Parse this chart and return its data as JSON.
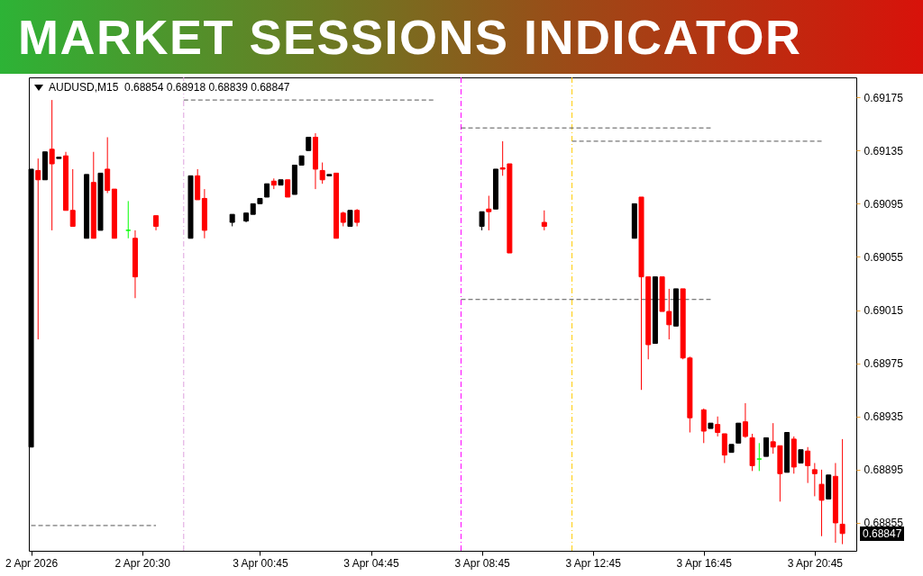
{
  "chart_data": {
    "type": "candlestick",
    "title": "MARKET SESSIONS INDICATOR",
    "subtitle": "AUDUSD,M15  0.68854 0.68918 0.68839 0.68847",
    "x": [
      "2026-04-02T16:30",
      "2026-04-02T16:45",
      "2026-04-02T17:00",
      "2026-04-02T17:15",
      "2026-04-02T17:30",
      "2026-04-02T17:45",
      "2026-04-02T18:00",
      "2026-04-02T18:30",
      "2026-04-02T18:45",
      "2026-04-02T19:00",
      "2026-04-02T19:15",
      "2026-04-02T19:30",
      "2026-04-02T20:00",
      "2026-04-02T20:15",
      "2026-04-02T21:00",
      "2026-04-02T22:15",
      "2026-04-02T22:30",
      "2026-04-02T22:45",
      "2026-04-02T23:45",
      "2026-04-03T00:15",
      "2026-04-03T00:30",
      "2026-04-03T00:45",
      "2026-04-03T01:00",
      "2026-04-03T01:15",
      "2026-04-03T01:30",
      "2026-04-03T01:45",
      "2026-04-03T02:00",
      "2026-04-03T02:15",
      "2026-04-03T02:30",
      "2026-04-03T02:45",
      "2026-04-03T03:00",
      "2026-04-03T03:15",
      "2026-04-03T03:30",
      "2026-04-03T03:45",
      "2026-04-03T04:00",
      "2026-04-03T04:15",
      "2026-04-03T08:45",
      "2026-04-03T09:00",
      "2026-04-03T09:15",
      "2026-04-03T09:30",
      "2026-04-03T09:45",
      "2026-04-03T11:00",
      "2026-04-03T14:15",
      "2026-04-03T14:30",
      "2026-04-03T14:45",
      "2026-04-03T15:00",
      "2026-04-03T15:15",
      "2026-04-03T15:30",
      "2026-04-03T15:45",
      "2026-04-03T16:00",
      "2026-04-03T16:15",
      "2026-04-03T16:45",
      "2026-04-03T17:00",
      "2026-04-03T17:15",
      "2026-04-03T17:30",
      "2026-04-03T17:45",
      "2026-04-03T18:00",
      "2026-04-03T18:15",
      "2026-04-03T18:30",
      "2026-04-03T18:45",
      "2026-04-03T19:00",
      "2026-04-03T19:15",
      "2026-04-03T19:30",
      "2026-04-03T19:45",
      "2026-04-03T20:00",
      "2026-04-03T20:15",
      "2026-04-03T20:30",
      "2026-04-03T20:45",
      "2026-04-03T21:00",
      "2026-04-03T21:15",
      "2026-04-03T21:30",
      "2026-04-03T21:45"
    ],
    "ohlc": [
      [
        0.68912,
        0.69121,
        0.68912,
        0.69121
      ],
      [
        0.6912,
        0.69129,
        0.68993,
        0.69113
      ],
      [
        0.69113,
        0.69134,
        0.69113,
        0.69134
      ],
      [
        0.69136,
        0.69173,
        0.69075,
        0.69125
      ],
      [
        0.69129,
        0.6913,
        0.69129,
        0.6913
      ],
      [
        0.69131,
        0.69134,
        0.6909,
        0.6909
      ],
      [
        0.6909,
        0.69121,
        0.69078,
        0.69078
      ],
      [
        0.69069,
        0.69117,
        0.69069,
        0.69117
      ],
      [
        0.69111,
        0.69134,
        0.69069,
        0.69069
      ],
      [
        0.69075,
        0.69118,
        0.69075,
        0.69118
      ],
      [
        0.69121,
        0.69145,
        0.69103,
        0.69105
      ],
      [
        0.69106,
        0.69106,
        0.69069,
        0.69069
      ],
      [
        0.69075,
        0.69097,
        0.69069,
        0.69075
      ],
      [
        0.69069,
        0.69075,
        0.69024,
        0.6904
      ],
      [
        0.69086,
        0.69086,
        0.69075,
        0.69078
      ],
      [
        0.69069,
        0.69116,
        0.69069,
        0.69116
      ],
      [
        0.69116,
        0.69121,
        0.69098,
        0.69098
      ],
      [
        0.69099,
        0.69106,
        0.69069,
        0.69075
      ],
      [
        0.69081,
        0.69087,
        0.69078,
        0.69087
      ],
      [
        0.69082,
        0.69088,
        0.69081,
        0.69088
      ],
      [
        0.69087,
        0.69095,
        0.69087,
        0.69095
      ],
      [
        0.69095,
        0.69099,
        0.69095,
        0.69099
      ],
      [
        0.691,
        0.6911,
        0.691,
        0.6911
      ],
      [
        0.69112,
        0.69114,
        0.69106,
        0.69109
      ],
      [
        0.69109,
        0.69113,
        0.69109,
        0.69113
      ],
      [
        0.69113,
        0.69113,
        0.691,
        0.691
      ],
      [
        0.69102,
        0.69124,
        0.69102,
        0.69124
      ],
      [
        0.69124,
        0.69131,
        0.69124,
        0.69131
      ],
      [
        0.69135,
        0.69145,
        0.69135,
        0.69145
      ],
      [
        0.69145,
        0.69148,
        0.69106,
        0.69121
      ],
      [
        0.6912,
        0.69126,
        0.6911,
        0.69113
      ],
      [
        0.69116,
        0.69117,
        0.69116,
        0.69117
      ],
      [
        0.69118,
        0.69118,
        0.69069,
        0.69069
      ],
      [
        0.69088,
        0.69089,
        0.69078,
        0.69081
      ],
      [
        0.69078,
        0.6909,
        0.69078,
        0.6909
      ],
      [
        0.6909,
        0.69091,
        0.69078,
        0.69081
      ],
      [
        0.69078,
        0.69089,
        0.69075,
        0.69089
      ],
      [
        0.69091,
        0.69101,
        0.69075,
        0.69089
      ],
      [
        0.69091,
        0.69121,
        0.69091,
        0.69121
      ],
      [
        0.69122,
        0.69142,
        0.69116,
        0.69121
      ],
      [
        0.69125,
        0.69125,
        0.69058,
        0.69058
      ],
      [
        0.69081,
        0.6909,
        0.69075,
        0.69078
      ],
      [
        0.69069,
        0.69095,
        0.69069,
        0.69095
      ],
      [
        0.691,
        0.691,
        0.68955,
        0.6904
      ],
      [
        0.6904,
        0.6904,
        0.68978,
        0.68989
      ],
      [
        0.6899,
        0.6904,
        0.6899,
        0.6904
      ],
      [
        0.6904,
        0.6904,
        0.69014,
        0.69014
      ],
      [
        0.69014,
        0.69031,
        0.68993,
        0.69004
      ],
      [
        0.69003,
        0.69031,
        0.69003,
        0.69031
      ],
      [
        0.69031,
        0.69031,
        0.68978,
        0.68979
      ],
      [
        0.68979,
        0.6898,
        0.68923,
        0.68934
      ],
      [
        0.6894,
        0.68941,
        0.68915,
        0.68924
      ],
      [
        0.68926,
        0.6893,
        0.68926,
        0.6893
      ],
      [
        0.68929,
        0.68935,
        0.6892,
        0.68923
      ],
      [
        0.68922,
        0.68922,
        0.689,
        0.68906
      ],
      [
        0.68908,
        0.68914,
        0.68908,
        0.68914
      ],
      [
        0.68915,
        0.6893,
        0.68915,
        0.6893
      ],
      [
        0.68931,
        0.68945,
        0.68919,
        0.6892
      ],
      [
        0.68919,
        0.68922,
        0.68894,
        0.68898
      ],
      [
        0.68903,
        0.68915,
        0.68894,
        0.68903
      ],
      [
        0.68905,
        0.68919,
        0.68905,
        0.68919
      ],
      [
        0.68916,
        0.6893,
        0.68907,
        0.68912
      ],
      [
        0.68913,
        0.68913,
        0.68871,
        0.68892
      ],
      [
        0.68893,
        0.68923,
        0.68893,
        0.68923
      ],
      [
        0.68918,
        0.6892,
        0.68892,
        0.68897
      ],
      [
        0.689,
        0.6891,
        0.689,
        0.6891
      ],
      [
        0.68909,
        0.68912,
        0.68885,
        0.68898
      ],
      [
        0.68895,
        0.689,
        0.68875,
        0.68892
      ],
      [
        0.68884,
        0.68895,
        0.68845,
        0.68872
      ],
      [
        0.68873,
        0.68891,
        0.68873,
        0.68891
      ],
      [
        0.6889,
        0.689,
        0.6884,
        0.68855
      ],
      [
        0.68854,
        0.68918,
        0.68839,
        0.68847
      ]
    ],
    "colors": [
      "#000000",
      "#ff0000",
      "#000000",
      "#ff0000",
      "#000000",
      "#ff0000",
      "#ff0000",
      "#000000",
      "#ff0000",
      "#000000",
      "#ff0000",
      "#ff0000",
      "#00ff00",
      "#ff0000",
      "#ff0000",
      "#000000",
      "#ff0000",
      "#ff0000",
      "#000000",
      "#000000",
      "#000000",
      "#000000",
      "#000000",
      "#ff0000",
      "#000000",
      "#ff0000",
      "#000000",
      "#000000",
      "#000000",
      "#ff0000",
      "#ff0000",
      "#000000",
      "#ff0000",
      "#ff0000",
      "#000000",
      "#ff0000",
      "#000000",
      "#ff0000",
      "#000000",
      "#ff0000",
      "#ff0000",
      "#ff0000",
      "#000000",
      "#ff0000",
      "#ff0000",
      "#000000",
      "#ff0000",
      "#ff0000",
      "#000000",
      "#ff0000",
      "#ff0000",
      "#ff0000",
      "#000000",
      "#ff0000",
      "#ff0000",
      "#000000",
      "#000000",
      "#ff0000",
      "#ff0000",
      "#00ff00",
      "#000000",
      "#ff0000",
      "#ff0000",
      "#000000",
      "#ff0000",
      "#000000",
      "#ff0000",
      "#ff0000",
      "#ff0000",
      "#000000",
      "#ff0000",
      "#ff0000"
    ],
    "series": [
      {
        "type": "line",
        "color": "#555555",
        "line_style": "dashed",
        "x": [
          "2026-04-02T16:30",
          "2026-04-02T21:00"
        ],
        "values": [
          0.68853,
          0.68853
        ]
      },
      {
        "type": "line",
        "color": "#555555",
        "line_style": "dashed",
        "x": [
          "2026-04-02T22:00",
          "2026-04-03T07:00"
        ],
        "values": [
          0.69173,
          0.69173
        ]
      },
      {
        "type": "line",
        "color": "#555555",
        "line_style": "dashed",
        "x": [
          "2026-04-03T08:00",
          "2026-04-03T17:00"
        ],
        "values": [
          0.69152,
          0.69152
        ]
      },
      {
        "type": "line",
        "color": "#555555",
        "line_style": "dashed",
        "x": [
          "2026-04-03T08:00",
          "2026-04-03T17:00"
        ],
        "values": [
          0.69023,
          0.69023
        ]
      },
      {
        "type": "line",
        "color": "#555555",
        "line_style": "dashed",
        "x": [
          "2026-04-03T12:00",
          "2026-04-03T21:00"
        ],
        "values": [
          0.69142,
          0.69142
        ]
      }
    ],
    "ref_lines": [
      {
        "axis": "x",
        "value": "2026-04-02T22:00",
        "color": "#dda0dd",
        "line_style": "dashed"
      },
      {
        "axis": "x",
        "value": "2026-04-03T08:00",
        "color": "#ff00ff",
        "line_style": "dashed"
      },
      {
        "axis": "x",
        "value": "2026-04-03T12:00",
        "color": "#ffcc00",
        "line_style": "dashed"
      }
    ],
    "annotations": [
      "0.68847"
    ],
    "xlim": [
      "2026-04-02T16:25",
      "2026-04-03T22:15"
    ],
    "xticks": [
      {
        "value": "2026-04-02T16:30",
        "label": "2 Apr 2026"
      },
      {
        "value": "2026-04-02T20:30",
        "label": "2 Apr 20:30"
      },
      {
        "value": "2026-04-03T00:45",
        "label": "3 Apr 00:45"
      },
      {
        "value": "2026-04-03T04:45",
        "label": "3 Apr 04:45"
      },
      {
        "value": "2026-04-03T08:45",
        "label": "3 Apr 08:45"
      },
      {
        "value": "2026-04-03T12:45",
        "label": "3 Apr 12:45"
      },
      {
        "value": "2026-04-03T16:45",
        "label": "3 Apr 16:45"
      },
      {
        "value": "2026-04-03T20:45",
        "label": "3 Apr 20:45"
      }
    ],
    "ylim": [
      0.68834,
      0.6919
    ],
    "yticks": [
      0.68855,
      0.68895,
      0.68935,
      0.68975,
      0.69015,
      0.69055,
      0.69095,
      0.69135,
      0.69175
    ]
  }
}
